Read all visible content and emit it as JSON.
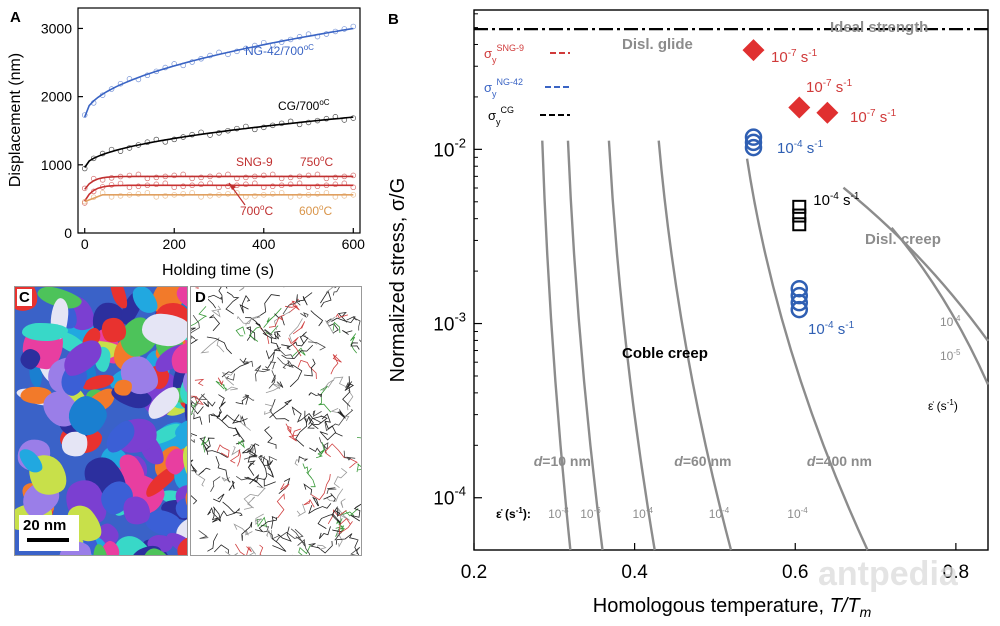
{
  "chart_data": [
    {
      "panel": "A",
      "type": "scatter",
      "xlabel": "Holding time (s)",
      "ylabel": "Displacement (nm)",
      "xlim": [
        -15,
        615
      ],
      "ylim": [
        0,
        3300
      ],
      "xticks": [
        "0",
        "200",
        "400",
        "600"
      ],
      "yticks": [
        "0",
        "1000",
        "2000",
        "3000"
      ],
      "series": [
        {
          "name": "NG-42/700°C",
          "label": "NG-42/700",
          "unit": "oC",
          "color": "#3a64c4",
          "y0": 1700,
          "yend": 3000,
          "shape": "sqrt"
        },
        {
          "name": "CG/700°C",
          "label": "CG/700",
          "unit": "oC",
          "color": "#000000",
          "y0": 960,
          "yend": 1700,
          "shape": "sqrt"
        },
        {
          "name": "SNG-9 750°C",
          "color": "#c03030",
          "y0": 640,
          "yend": 830,
          "shape": "sat"
        },
        {
          "name": "SNG-9 700°C",
          "color": "#c83232",
          "y0": 470,
          "yend": 700,
          "shape": "sat"
        },
        {
          "name": "SNG-9 600°C",
          "color": "#e0a060",
          "y0": 460,
          "yend": 560,
          "shape": "flat"
        }
      ],
      "annotations": {
        "sng9": "SNG-9",
        "t750": "750",
        "t700": "700",
        "t600": "600",
        "deg": "o",
        "c": "C"
      }
    },
    {
      "panel": "B",
      "type": "line",
      "xlabel": "Homologous temperature, ",
      "xlabel_italic": "T/T",
      "xlabel_sub": "m",
      "ylabel": "Normalized stress, σ/G",
      "xlim": [
        0.2,
        0.84
      ],
      "ylim_log10": [
        -4.3,
        -1.2
      ],
      "xticks": [
        "0.2",
        "0.4",
        "0.6",
        "0.8"
      ],
      "yticks": [
        {
          "exp": "-4",
          "base": "10"
        },
        {
          "exp": "-3",
          "base": "10"
        },
        {
          "exp": "-2",
          "base": "10"
        }
      ],
      "ideal_strength": {
        "label": "Ideal strength",
        "log10": -1.31
      },
      "glide_label": "Disl. glide",
      "creep_label": "Disl. creep",
      "coble_label": "Coble creep",
      "yield_lines": [
        {
          "sub": "y",
          "sup": "SNG-9",
          "log10": -1.4,
          "color": "#d03a3a"
        },
        {
          "sub": "y",
          "sup": "NG-42",
          "log10": -1.6,
          "color": "#3a64c4"
        },
        {
          "sub": "y",
          "sup": "CG",
          "log10": -1.78,
          "color": "#000000"
        }
      ],
      "sigma": "σ",
      "coble_curves": [
        {
          "label": "10",
          "exp": "-8",
          "x_top": 0.285,
          "x_bot": 0.32
        },
        {
          "label": "10",
          "exp": "-6",
          "x_top": 0.317,
          "x_bot": 0.36
        },
        {
          "label": "10",
          "exp": "-4",
          "x_top": 0.368,
          "x_bot": 0.425
        },
        {
          "label": "10",
          "exp": "-4",
          "x_top": 0.43,
          "x_bot": 0.52
        },
        {
          "label": "10",
          "exp": "-4",
          "x_top": 0.54,
          "x_bot": 0.69
        }
      ],
      "grain_labels": [
        {
          "d": "d",
          "text": "=10 nm",
          "x": 0.31
        },
        {
          "d": "d",
          "text": "=60 nm",
          "x": 0.485
        },
        {
          "d": "d",
          "text": "=400 nm",
          "x": 0.655
        }
      ],
      "disl_creep_curves": [
        {
          "label": "10",
          "exp": "-4",
          "x0": 0.66,
          "y0": -2.22,
          "x1": 0.84,
          "y1": -3.1
        },
        {
          "label": "10",
          "exp": "-5",
          "x0": 0.72,
          "y0": -2.45,
          "x1": 0.84,
          "y1": -3.35
        }
      ],
      "rate_key_left": "ε̇ (s",
      "rate_key_left_exp": "-1",
      "rate_key_left_end": "):",
      "rate_key_right": "ε̇ (s",
      "rate_key_right_exp": "-1",
      "rate_key_right_end": ")",
      "points": [
        {
          "group": "SNG-9",
          "marker": "diamond",
          "color": "#e03030",
          "x": 0.548,
          "log10": -1.43
        },
        {
          "group": "SNG-9",
          "marker": "diamond",
          "color": "#e03030",
          "x": 0.605,
          "log10": -1.76
        },
        {
          "group": "SNG-9",
          "marker": "diamond",
          "color": "#e03030",
          "x": 0.64,
          "log10": -1.79
        },
        {
          "group": "NG-42",
          "marker": "circle",
          "color": "#2f5fb3",
          "x": 0.548,
          "log10": -1.93
        },
        {
          "group": "NG-42",
          "marker": "circle",
          "color": "#2f5fb3",
          "x": 0.548,
          "log10": -1.96
        },
        {
          "group": "NG-42",
          "marker": "circle",
          "color": "#2f5fb3",
          "x": 0.548,
          "log10": -1.99
        },
        {
          "group": "CG",
          "marker": "square",
          "color": "#000000",
          "x": 0.605,
          "log10": -2.33
        },
        {
          "group": "CG",
          "marker": "square",
          "color": "#000000",
          "x": 0.605,
          "log10": -2.38
        },
        {
          "group": "CG",
          "marker": "square",
          "color": "#000000",
          "x": 0.605,
          "log10": -2.43
        },
        {
          "group": "NG-42",
          "marker": "circle",
          "color": "#2f5fb3",
          "x": 0.605,
          "log10": -2.8
        },
        {
          "group": "NG-42",
          "marker": "circle",
          "color": "#2f5fb3",
          "x": 0.605,
          "log10": -2.84
        },
        {
          "group": "NG-42",
          "marker": "circle",
          "color": "#2f5fb3",
          "x": 0.605,
          "log10": -2.88
        },
        {
          "group": "NG-42",
          "marker": "circle",
          "color": "#2f5fb3",
          "x": 0.605,
          "log10": -2.92
        }
      ],
      "point_labels": [
        {
          "base": "10",
          "exp": "-7",
          "unit": " s",
          "uexp": "-1",
          "color": "#d03a3a"
        },
        {
          "base": "10",
          "exp": "-7",
          "unit": " s",
          "uexp": "-1",
          "color": "#d03a3a"
        },
        {
          "base": "10",
          "exp": "-7",
          "unit": " s",
          "uexp": "-1",
          "color": "#d03a3a"
        },
        {
          "base": "10",
          "exp": "-4",
          "unit": " s",
          "uexp": "-1",
          "color": "#2f5fb3"
        },
        {
          "base": "10",
          "exp": "-4",
          "unit": " s",
          "uexp": "-1",
          "color": "#000000"
        },
        {
          "base": "10",
          "exp": "-4",
          "unit": " s",
          "uexp": "-1",
          "color": "#2f5fb3"
        }
      ]
    }
  ],
  "panels": {
    "a": "A",
    "b": "B",
    "c": "C",
    "d": "D"
  },
  "scale_bar": "20 nm",
  "watermark": "antpedia",
  "colors": {
    "curve_gray": "#8c8c8c"
  }
}
